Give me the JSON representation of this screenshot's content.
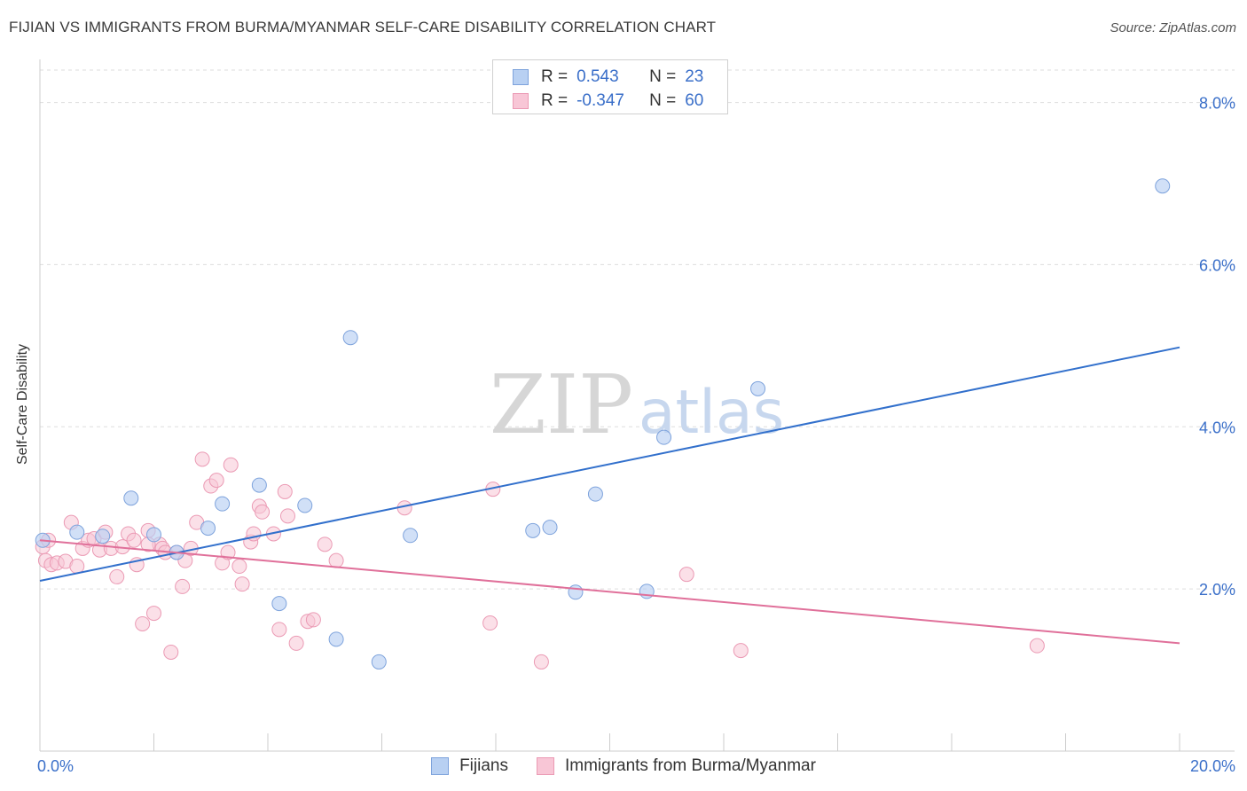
{
  "header": {
    "title": "FIJIAN VS IMMIGRANTS FROM BURMA/MYANMAR SELF-CARE DISABILITY CORRELATION CHART",
    "source": "Source: ZipAtlas.com"
  },
  "watermark": {
    "zip": "ZIP",
    "atlas": "atlas"
  },
  "legend_top": [
    {
      "r_label": "R =",
      "r_value": "0.543",
      "n_label": "N =",
      "n_value": "23"
    },
    {
      "r_label": "R =",
      "r_value": "-0.347",
      "n_label": "N =",
      "n_value": "60"
    }
  ],
  "colors": {
    "fijians_fill": "#b8d0f2",
    "fijians_stroke": "#7ea3dc",
    "fijians_line": "#3270cc",
    "burma_fill": "#f8c6d6",
    "burma_stroke": "#eb9ab4",
    "burma_line": "#e0709a",
    "tick_label": "#3a6fc9",
    "grid": "#dddddd"
  },
  "chart_data": {
    "type": "scatter",
    "title": "FIJIAN VS IMMIGRANTS FROM BURMA/MYANMAR SELF-CARE DISABILITY CORRELATION CHART",
    "xlabel": "",
    "ylabel": "Self-Care Disability",
    "xlim": [
      0,
      20
    ],
    "ylim": [
      0,
      8.4
    ],
    "x_tick_labels": [
      {
        "value": 0,
        "label": "0.0%"
      },
      {
        "value": 20,
        "label": "20.0%"
      }
    ],
    "y_tick_labels": [
      {
        "value": 2,
        "label": "2.0%"
      },
      {
        "value": 4,
        "label": "4.0%"
      },
      {
        "value": 6,
        "label": "6.0%"
      },
      {
        "value": 8,
        "label": "8.0%"
      }
    ],
    "x_minor_ticks": [
      0,
      2,
      4,
      6,
      8,
      10,
      12,
      14,
      16,
      18,
      20
    ],
    "y_gridlines": [
      2,
      4,
      6,
      8,
      8.4
    ],
    "legend_placement": "bottom",
    "series": [
      {
        "name": "Fijians",
        "r": 0.543,
        "n": 23,
        "trend": {
          "x": [
            0,
            20
          ],
          "y": [
            2.1,
            4.98
          ]
        },
        "points": [
          [
            0.05,
            2.6
          ],
          [
            0.65,
            2.7
          ],
          [
            1.1,
            2.65
          ],
          [
            1.6,
            3.12
          ],
          [
            2.0,
            2.67
          ],
          [
            2.4,
            2.45
          ],
          [
            2.95,
            2.75
          ],
          [
            3.2,
            3.05
          ],
          [
            3.85,
            3.28
          ],
          [
            4.2,
            1.82
          ],
          [
            4.65,
            3.03
          ],
          [
            5.2,
            1.38
          ],
          [
            5.45,
            5.1
          ],
          [
            5.95,
            1.1
          ],
          [
            6.5,
            2.66
          ],
          [
            8.65,
            2.72
          ],
          [
            8.95,
            2.76
          ],
          [
            9.4,
            1.96
          ],
          [
            9.75,
            3.17
          ],
          [
            10.65,
            1.97
          ],
          [
            10.95,
            3.87
          ],
          [
            12.6,
            4.47
          ],
          [
            19.7,
            6.97
          ]
        ]
      },
      {
        "name": "Immigrants from Burma/Myanmar",
        "r": -0.347,
        "n": 60,
        "trend": {
          "x": [
            0,
            20
          ],
          "y": [
            2.6,
            1.33
          ]
        },
        "points": [
          [
            0.05,
            2.52
          ],
          [
            0.1,
            2.35
          ],
          [
            0.2,
            2.3
          ],
          [
            0.3,
            2.32
          ],
          [
            0.45,
            2.34
          ],
          [
            0.55,
            2.82
          ],
          [
            0.65,
            2.28
          ],
          [
            0.75,
            2.5
          ],
          [
            0.85,
            2.6
          ],
          [
            0.95,
            2.62
          ],
          [
            1.05,
            2.48
          ],
          [
            1.15,
            2.7
          ],
          [
            1.25,
            2.5
          ],
          [
            1.35,
            2.15
          ],
          [
            1.45,
            2.52
          ],
          [
            1.55,
            2.68
          ],
          [
            1.65,
            2.6
          ],
          [
            1.7,
            2.3
          ],
          [
            1.8,
            1.57
          ],
          [
            1.9,
            2.72
          ],
          [
            2.0,
            1.7
          ],
          [
            2.1,
            2.55
          ],
          [
            2.15,
            2.5
          ],
          [
            2.2,
            2.45
          ],
          [
            2.3,
            1.22
          ],
          [
            2.4,
            2.45
          ],
          [
            2.5,
            2.03
          ],
          [
            2.55,
            2.35
          ],
          [
            2.65,
            2.5
          ],
          [
            2.75,
            2.82
          ],
          [
            2.85,
            3.6
          ],
          [
            3.0,
            3.27
          ],
          [
            3.1,
            3.34
          ],
          [
            3.2,
            2.32
          ],
          [
            3.3,
            2.45
          ],
          [
            3.35,
            3.53
          ],
          [
            3.5,
            2.28
          ],
          [
            3.55,
            2.06
          ],
          [
            3.7,
            2.58
          ],
          [
            3.75,
            2.68
          ],
          [
            3.85,
            3.02
          ],
          [
            3.9,
            2.95
          ],
          [
            4.1,
            2.68
          ],
          [
            4.2,
            1.5
          ],
          [
            4.3,
            3.2
          ],
          [
            4.35,
            2.9
          ],
          [
            4.5,
            1.33
          ],
          [
            4.7,
            1.6
          ],
          [
            4.8,
            1.62
          ],
          [
            5.0,
            2.55
          ],
          [
            5.2,
            2.35
          ],
          [
            6.4,
            3.0
          ],
          [
            7.9,
            1.58
          ],
          [
            7.95,
            3.23
          ],
          [
            8.8,
            1.1
          ],
          [
            11.35,
            2.18
          ],
          [
            12.3,
            1.24
          ],
          [
            17.5,
            1.3
          ],
          [
            0.15,
            2.6
          ],
          [
            1.9,
            2.55
          ]
        ]
      }
    ]
  }
}
